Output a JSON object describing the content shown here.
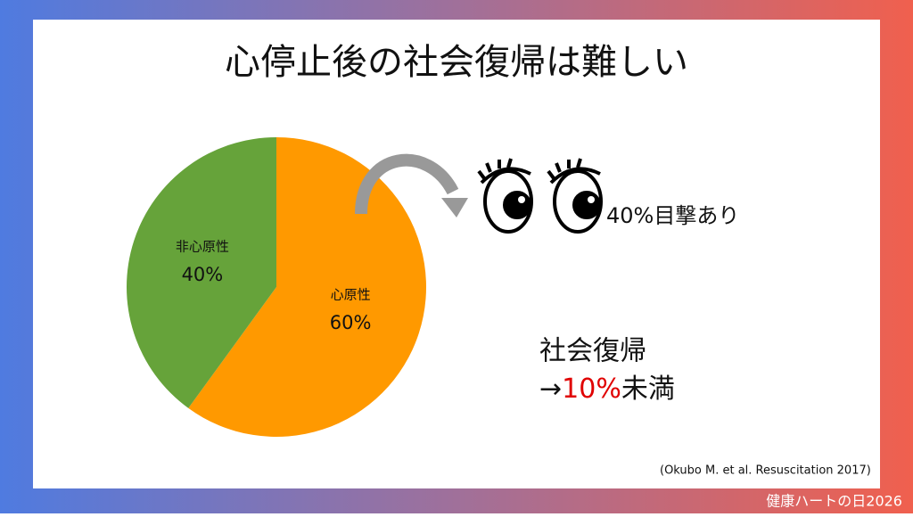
{
  "title": "心停止後の社会復帰は難しい",
  "chart_data": {
    "type": "pie",
    "categories": [
      "心原性",
      "非心原性"
    ],
    "values": [
      60,
      40
    ],
    "value_labels": [
      "60%",
      "40%"
    ],
    "colors": [
      "#ff9900",
      "#66a33a"
    ]
  },
  "witness_note": "40%目撃あり",
  "recovery": {
    "label": "社会復帰",
    "arrow": "→",
    "rate": "10%",
    "suffix": "未満"
  },
  "citation": "(Okubo M. et al. Resuscitation 2017)",
  "footer": "健康ハートの日2026"
}
